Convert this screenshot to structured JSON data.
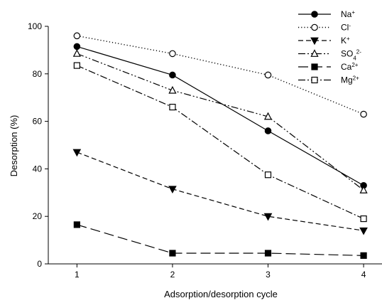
{
  "chart_data": {
    "type": "line",
    "title": "",
    "xlabel": "Adsorption/desorption cycle",
    "ylabel": "Desorption (%)",
    "x": [
      1,
      2,
      3,
      4
    ],
    "xlim": [
      0.7,
      4.2
    ],
    "ylim": [
      0,
      100
    ],
    "x_ticks": [
      "1",
      "2",
      "3",
      "4"
    ],
    "y_ticks": [
      "0",
      "20",
      "40",
      "60",
      "80",
      "100"
    ],
    "grid": false,
    "legend_position": "top-right",
    "series": [
      {
        "name": "Na+",
        "label_base": "Na",
        "label_sup": "+",
        "values": [
          91.5,
          79.5,
          56,
          33
        ],
        "line_style": "solid",
        "marker": "circle",
        "marker_filled": true,
        "color": "#000000"
      },
      {
        "name": "Cl-",
        "label_base": "Cl",
        "label_sup": "-",
        "values": [
          96,
          88.5,
          79.5,
          63
        ],
        "line_style": "dotted",
        "marker": "circle",
        "marker_filled": false,
        "color": "#000000"
      },
      {
        "name": "K+",
        "label_base": "K",
        "label_sup": "+",
        "values": [
          47,
          31.5,
          20,
          14
        ],
        "line_style": "dashed",
        "marker": "triangle-down",
        "marker_filled": true,
        "color": "#000000"
      },
      {
        "name": "SO42-",
        "label_base": "SO",
        "label_sub": "4",
        "label_sup": "2-",
        "values": [
          88.5,
          73,
          62,
          31
        ],
        "line_style": "dash-dot-dot",
        "marker": "triangle-up",
        "marker_filled": false,
        "color": "#000000"
      },
      {
        "name": "Ca2+",
        "label_base": "Ca",
        "label_sup": "2+",
        "values": [
          16.5,
          4.5,
          4.5,
          3.5
        ],
        "line_style": "long-dash",
        "marker": "square",
        "marker_filled": true,
        "color": "#000000"
      },
      {
        "name": "Mg2+",
        "label_base": "Mg",
        "label_sup": "2+",
        "values": [
          83.5,
          66,
          37.5,
          19
        ],
        "line_style": "dash-dot",
        "marker": "square",
        "marker_filled": false,
        "color": "#000000"
      }
    ]
  }
}
